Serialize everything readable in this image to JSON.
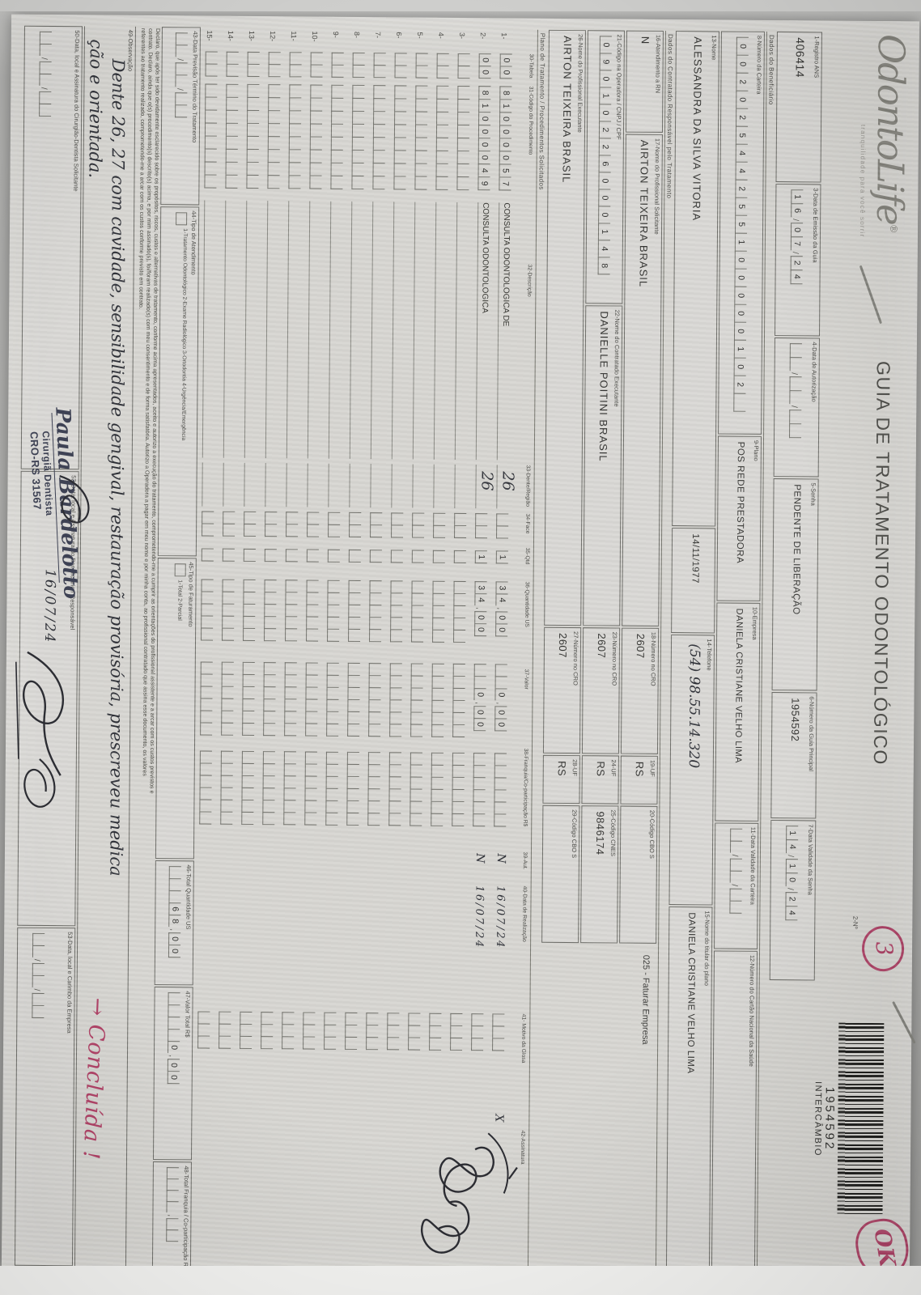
{
  "header": {
    "logo": "OdontoLife",
    "logo_reg": "®",
    "tagline": "tranquilidade para você sorrir",
    "title": "GUIA DE TRATAMENTO ODONTOLÓGICO",
    "numero_label": "2-Nº",
    "barcode_number": "1954592",
    "barcode_sub": "INTERCÂMBIO"
  },
  "annotations": {
    "circle_number": "3",
    "ok_mark": "OK",
    "concluida": "→ Concluída !"
  },
  "fields": {
    "f1": {
      "label": "1-Registro ANS",
      "value": "406414"
    },
    "f3": {
      "label": "3-Data de Emissão da Guia",
      "value": "16/07/24"
    },
    "f4": {
      "label": "4-Data de Autorização",
      "value": "  /  /  "
    },
    "f5": {
      "label": "5-Senha",
      "value": "PENDENTE DE LIBERAÇÃO"
    },
    "f6": {
      "label": "6-Número da Guia Principal",
      "value": "1954592"
    },
    "f7": {
      "label": "7-Data Validade da Senha",
      "value": "14/10/24"
    },
    "sec_beneficiario": "Dados do Beneficiário",
    "f8": {
      "label": "8-Número da Carteira",
      "value": "00202544255100000102 "
    },
    "f9": {
      "label": "9-Plano",
      "value": "POS REDE PRESTADORA"
    },
    "f10": {
      "label": "10-Empresa",
      "value": "DANIELA CRISTIANE VELHO LIMA"
    },
    "f11": {
      "label": "11-Data Validade da Carteira",
      "value": "  /  /  "
    },
    "f12": {
      "label": "12-Número do Cartão Nacional da Saúde",
      "value": ""
    },
    "f13": {
      "label": "13-Nome",
      "value": "ALESSANDRA DA SILVA VITORIA"
    },
    "nascimento": {
      "label": "",
      "value": "14/11/1977"
    },
    "f14": {
      "label": "14-Telefone",
      "value": "(54) 98.55.14.320"
    },
    "f15": {
      "label": "15-Nome do titular do plano",
      "value": "DANIELA CRISTIANE VELHO LIMA"
    },
    "sec_contratado": "Dados do Contratado Responsável pelo Tratamento",
    "f16": {
      "label": "16-Atendimento a RN",
      "value": "N"
    },
    "f17": {
      "label": "17-Nome do Profissional Solicitante",
      "value": "AIRTON TEIXEIRA BRASIL"
    },
    "f18": {
      "label": "18-Número no CRO",
      "value": "2607"
    },
    "f19": {
      "label": "19-UF",
      "value": "RS"
    },
    "f20": {
      "label": "20-Código CBO S",
      "value": ""
    },
    "faturar": "025 - Faturar Empresa",
    "f21": {
      "label": "21-Código na Operadora / CNPJ / CPF",
      "value": "09010226000148"
    },
    "f22": {
      "label": "22-Nome do Contratado Executante",
      "value": "DANIELLE POITINI BRASIL"
    },
    "f23": {
      "label": "23-Número no CRO",
      "value": "2607"
    },
    "f24": {
      "label": "24-UF",
      "value": "RS"
    },
    "f25": {
      "label": "25-Código CNES",
      "value": "9846174"
    },
    "f26": {
      "label": "26-Nome do Profissional Executante",
      "value": "AIRTON TEIXEIRA BRASIL"
    },
    "f27": {
      "label": "27-Número no CRO",
      "value": "2607"
    },
    "f28": {
      "label": "28-UF",
      "value": "RS"
    },
    "f29": {
      "label": "29-Código CBO S",
      "value": ""
    },
    "sec_plano": "Plano de Tratamento / Procedimentos Solicitados"
  },
  "table": {
    "headers": [
      "30-Tabela",
      "31-Código do Procedimento",
      "32-Descrição",
      "33-Dente/Região",
      "34-Face",
      "35-Qtd",
      "36-Quantidade US",
      "37-Valor",
      "38-Franquia/Co-participação R$",
      "39-Aut.",
      "40-Data de Realização",
      "41- Motivo da Glosa",
      "42-Assinatura"
    ],
    "rows": [
      {
        "n": "1-",
        "tabela": "00",
        "codigo": "81000057",
        "desc": "CONSULTA ODONTOLOGICA DE",
        "dente": "26",
        "face": "",
        "qtd": "1",
        "us": "34,00",
        "valor": "0,00",
        "franquia": "",
        "aut": "N",
        "data": "16/07/24",
        "motivo": "",
        "assin": "X"
      },
      {
        "n": "2-",
        "tabela": "00",
        "codigo": "81000049",
        "desc": "CONSULTA ODONTOLOGICA",
        "dente": "26",
        "face": "",
        "qtd": "1",
        "us": "34,00",
        "valor": "0,00",
        "franquia": "",
        "aut": "N",
        "data": "16/07/24",
        "motivo": "",
        "assin": ""
      },
      {
        "n": "3-",
        "tabela": "",
        "codigo": "",
        "desc": "",
        "dente": "",
        "face": "",
        "qtd": "",
        "us": "",
        "valor": "",
        "franquia": "",
        "aut": "",
        "data": "",
        "motivo": "",
        "assin": ""
      },
      {
        "n": "4-",
        "tabela": "",
        "codigo": "",
        "desc": "",
        "dente": "",
        "face": "",
        "qtd": "",
        "us": "",
        "valor": "",
        "franquia": "",
        "aut": "",
        "data": "",
        "motivo": "",
        "assin": ""
      },
      {
        "n": "5-",
        "tabela": "",
        "codigo": "",
        "desc": "",
        "dente": "",
        "face": "",
        "qtd": "",
        "us": "",
        "valor": "",
        "franquia": "",
        "aut": "",
        "data": "",
        "motivo": "",
        "assin": ""
      },
      {
        "n": "6-",
        "tabela": "",
        "codigo": "",
        "desc": "",
        "dente": "",
        "face": "",
        "qtd": "",
        "us": "",
        "valor": "",
        "franquia": "",
        "aut": "",
        "data": "",
        "motivo": "",
        "assin": ""
      },
      {
        "n": "7-",
        "tabela": "",
        "codigo": "",
        "desc": "",
        "dente": "",
        "face": "",
        "qtd": "",
        "us": "",
        "valor": "",
        "franquia": "",
        "aut": "",
        "data": "",
        "motivo": "",
        "assin": ""
      },
      {
        "n": "8-",
        "tabela": "",
        "codigo": "",
        "desc": "",
        "dente": "",
        "face": "",
        "qtd": "",
        "us": "",
        "valor": "",
        "franquia": "",
        "aut": "",
        "data": "",
        "motivo": "",
        "assin": ""
      },
      {
        "n": "9-",
        "tabela": "",
        "codigo": "",
        "desc": "",
        "dente": "",
        "face": "",
        "qtd": "",
        "us": "",
        "valor": "",
        "franquia": "",
        "aut": "",
        "data": "",
        "motivo": "",
        "assin": ""
      },
      {
        "n": "10-",
        "tabela": "",
        "codigo": "",
        "desc": "",
        "dente": "",
        "face": "",
        "qtd": "",
        "us": "",
        "valor": "",
        "franquia": "",
        "aut": "",
        "data": "",
        "motivo": "",
        "assin": ""
      },
      {
        "n": "11-",
        "tabela": "",
        "codigo": "",
        "desc": "",
        "dente": "",
        "face": "",
        "qtd": "",
        "us": "",
        "valor": "",
        "franquia": "",
        "aut": "",
        "data": "",
        "motivo": "",
        "assin": ""
      },
      {
        "n": "12-",
        "tabela": "",
        "codigo": "",
        "desc": "",
        "dente": "",
        "face": "",
        "qtd": "",
        "us": "",
        "valor": "",
        "franquia": "",
        "aut": "",
        "data": "",
        "motivo": "",
        "assin": ""
      },
      {
        "n": "13-",
        "tabela": "",
        "codigo": "",
        "desc": "",
        "dente": "",
        "face": "",
        "qtd": "",
        "us": "",
        "valor": "",
        "franquia": "",
        "aut": "",
        "data": "",
        "motivo": "",
        "assin": ""
      },
      {
        "n": "14-",
        "tabela": "",
        "codigo": "",
        "desc": "",
        "dente": "",
        "face": "",
        "qtd": "",
        "us": "",
        "valor": "",
        "franquia": "",
        "aut": "",
        "data": "",
        "motivo": "",
        "assin": ""
      },
      {
        "n": "15-",
        "tabela": "",
        "codigo": "",
        "desc": "",
        "dente": "",
        "face": "",
        "qtd": "",
        "us": "",
        "valor": "",
        "franquia": "",
        "aut": "",
        "data": "",
        "motivo": "",
        "assin": ""
      }
    ]
  },
  "totals": {
    "f43": {
      "label": "43-Data Previsão Término do Tratamento",
      "value": "  /  /  "
    },
    "f44": {
      "label": "44-Tipo de Atendimento",
      "options": "1-Tratamento Odontológico  2-Exame Radiológico  3-Ortodontia  4-Urgência/Emergência"
    },
    "f45": {
      "label": "45-Tipo de Faturamento",
      "options": "1-Total  2-Parcial"
    },
    "f46": {
      "label": "46-Total Quantidade US",
      "value": "   68,00"
    },
    "f47": {
      "label": "47-Valor Total R$",
      "value": "    0,00"
    },
    "f48": {
      "label": "48-Total Franquia / Co-participação R$",
      "value": "    ,  "
    }
  },
  "declaration": {
    "line1": "Declaro, que após ter sido devidamente esclarecido sobre os propósitos, riscos, custos e alternativas de tratamento, conforme acima apresentados, aceito e autorizo a execução do tratamento, comprometendo-me a cumprir as orientações do profissional assistente e a arcar com os custos previstos e",
    "line2": "contrato. Declaro, ainda que o(s) procedimento(s) descrito(s) acima, e por mim assinado(s), foi/foram realizado(s) com meu consentimento e de forma satisfatória. Autorizo a Operadora a pagar em meu nome e por minha conta, ao profissional contratado que assina esse documento, os valores",
    "line3": "referentes ao tratamento realizado, comprometendo-me a arcar com os custos conforme previsto em contrato."
  },
  "observacao": {
    "label": "49-Observação",
    "line1": "Dente 26, 27 com cavidade, sensibilidade gengival, restauração provisória, prescreveu medica",
    "line2": "ção e orientada."
  },
  "signatures": {
    "f50": {
      "label": "50-Data, local e Assinatura do Cirurgião-Dentista Solicitante",
      "value": "  /  /  "
    },
    "f52": {
      "label": "52-Data, local e Assinatura do Beneficiário / Responsável",
      "date": "16/07/24"
    },
    "f53": {
      "label": "53-Data, local e Carimbo da Empresa",
      "value": "  /  /  "
    },
    "stamp": {
      "name": "Paula Bardelotto",
      "role": "Cirurgiã Dentista",
      "cro": "CRO-RS 31567"
    }
  }
}
